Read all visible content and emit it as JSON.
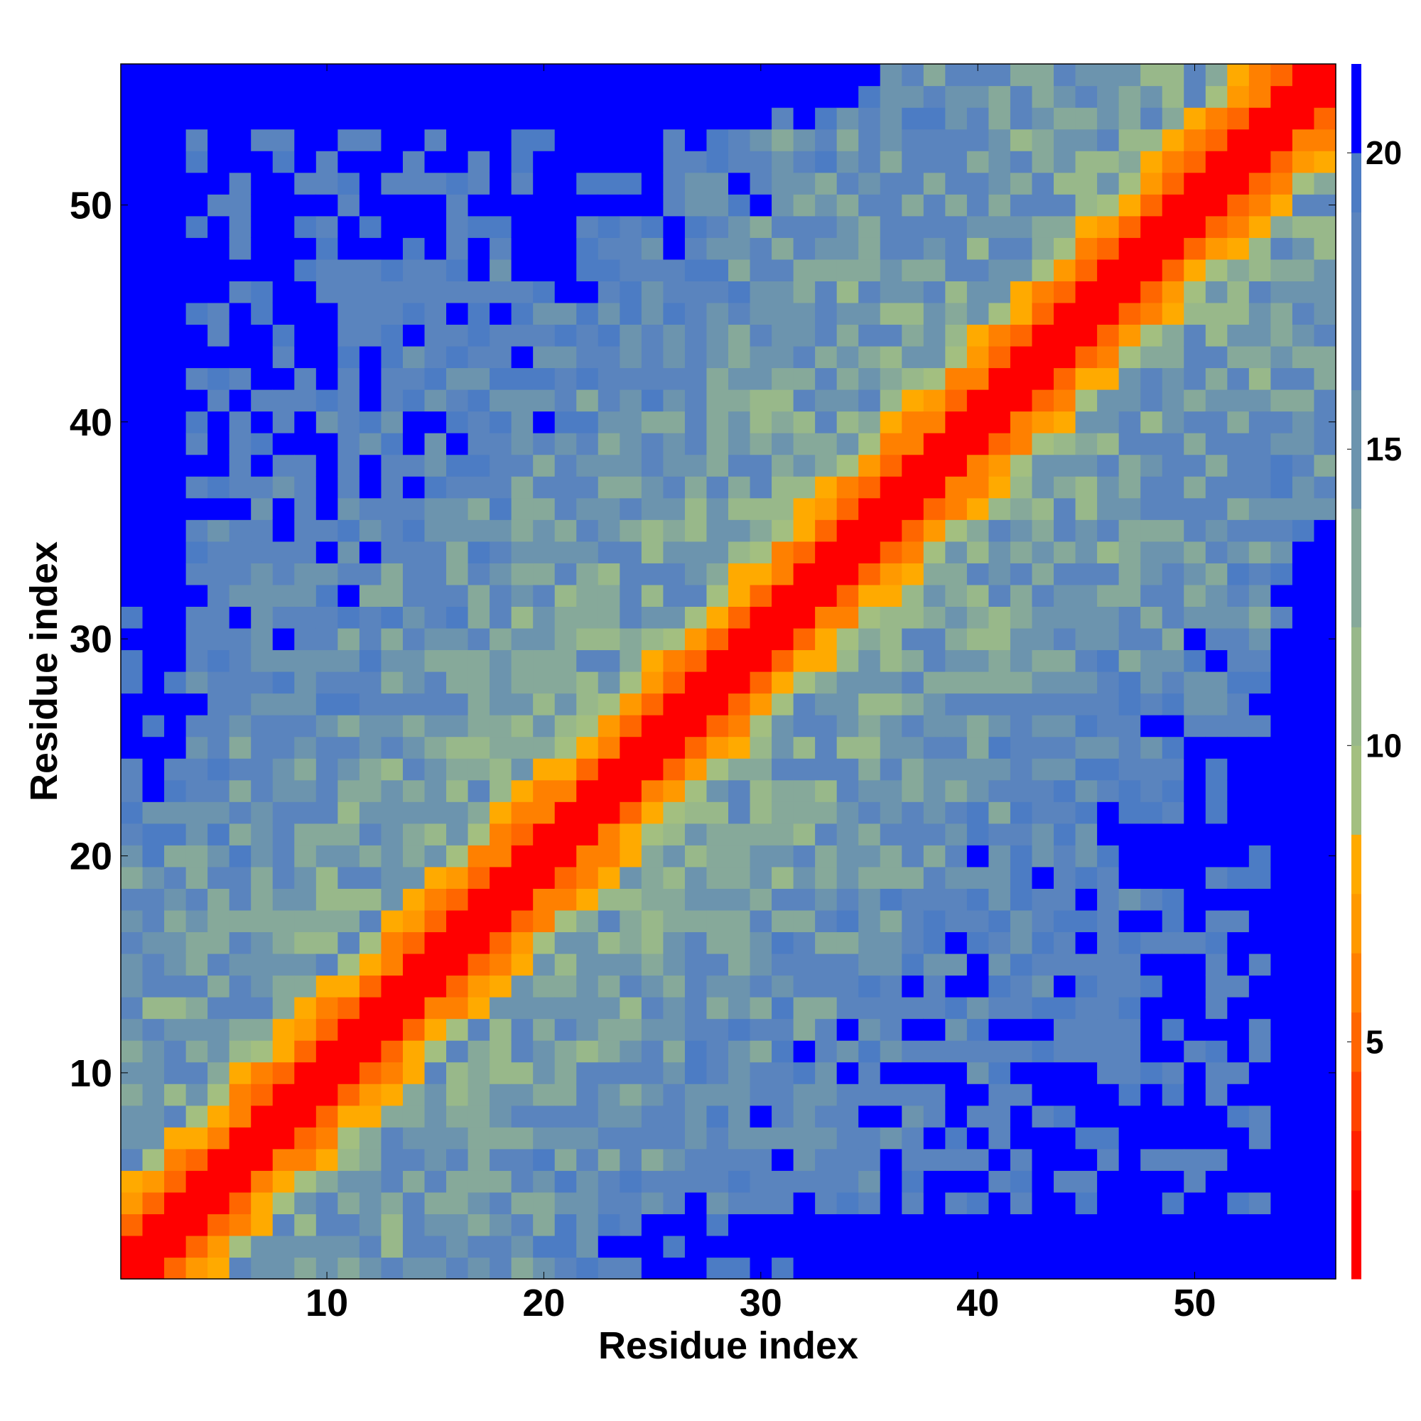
{
  "chart_data": {
    "type": "heatmap",
    "title": "",
    "xlabel": "Residue index",
    "ylabel": "Residue index",
    "n_residues": 56,
    "xlim": [
      0.5,
      56.5
    ],
    "ylim": [
      0.5,
      56.5
    ],
    "x_ticks": [
      "10",
      "20",
      "30",
      "40",
      "50"
    ],
    "y_ticks": [
      "10",
      "20",
      "30",
      "40",
      "50"
    ],
    "colorbar": {
      "ticks": [
        "5",
        "10",
        "15",
        "20"
      ],
      "range": [
        1,
        21.5
      ],
      "levels": [
        {
          "max": 2.5,
          "color": "#ff0000"
        },
        {
          "max": 3.5,
          "color": "#ff2200"
        },
        {
          "max": 4.5,
          "color": "#ff4400"
        },
        {
          "max": 5.5,
          "color": "#ff6600"
        },
        {
          "max": 6.5,
          "color": "#ff8000"
        },
        {
          "max": 7.5,
          "color": "#ff9900"
        },
        {
          "max": 8.5,
          "color": "#ffaa00"
        },
        {
          "max": 10.0,
          "color": "#a3bf80"
        },
        {
          "max": 12.0,
          "color": "#98b88a"
        },
        {
          "max": 14.0,
          "color": "#86a99a"
        },
        {
          "max": 16.0,
          "color": "#6c94ae"
        },
        {
          "max": 19.0,
          "color": "#5a84be"
        },
        {
          "max": 20.0,
          "color": "#4c7cc4"
        },
        {
          "max": 99,
          "color": "#0000ff"
        }
      ]
    },
    "grid": false,
    "distance_model": "contact-map of a helical peptide: distance grows with |i-j|, with periodic contacts and far-field blue (>20) regions"
  }
}
